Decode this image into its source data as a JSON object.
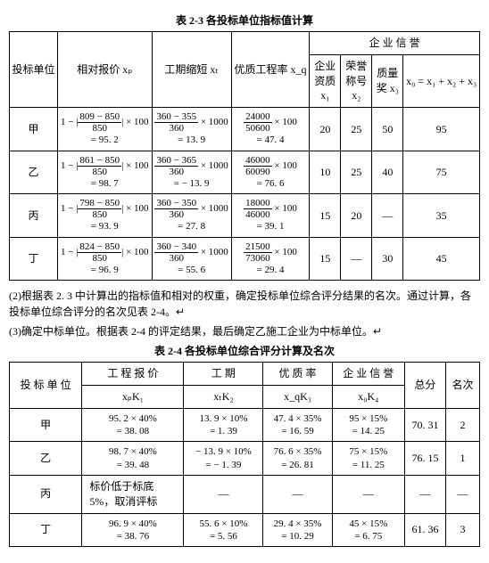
{
  "table23": {
    "caption": "表 2-3  各投标单位指标值计算",
    "headers": {
      "bidder": "投标单位",
      "relprice": "相对报价 xₚ",
      "duration": "工期缩短 xₜ",
      "quality": "优质工程率 x_q",
      "credit": "企 业 信 誉",
      "qual": "企业\n资质 x₁",
      "honor": "荣誉\n称号 x₂",
      "award": "质量\n奖 x₃",
      "sum": "x₀ = x₁ + x₂ + x₃"
    },
    "rows": [
      {
        "name": "甲",
        "relprice_num": "809 − 850",
        "relprice_den": "850",
        "relprice_expr_prefix": "1 −",
        "relprice_expr_suffix": "× 100",
        "relprice_result": "= 95. 2",
        "dur_num": "360 − 355",
        "dur_den": "360",
        "dur_suffix": "× 1000",
        "dur_result": "= 13. 9",
        "qual_num": "24000",
        "qual_den": "50600",
        "qual_suffix": "× 100",
        "qual_result": "= 47. 4",
        "c1": "20",
        "c2": "25",
        "c3": "50",
        "csum": "95"
      },
      {
        "name": "乙",
        "relprice_num": "861 − 850",
        "relprice_den": "850",
        "relprice_expr_prefix": "1 −",
        "relprice_expr_suffix": "× 100",
        "relprice_result": "= 98. 7",
        "dur_num": "360 − 365",
        "dur_den": "360",
        "dur_suffix": "× 1000",
        "dur_result": "= − 13. 9",
        "qual_num": "46000",
        "qual_den": "60090",
        "qual_suffix": "× 100",
        "qual_result": "= 76. 6",
        "c1": "10",
        "c2": "25",
        "c3": "40",
        "csum": "75"
      },
      {
        "name": "丙",
        "relprice_num": "798 − 850",
        "relprice_den": "850",
        "relprice_expr_prefix": "1 −",
        "relprice_expr_suffix": "× 100",
        "relprice_result": "= 93. 9",
        "dur_num": "360 − 350",
        "dur_den": "360",
        "dur_suffix": "× 1000",
        "dur_result": "= 27. 8",
        "qual_num": "18000",
        "qual_den": "46000",
        "qual_suffix": "× 100",
        "qual_result": "= 39. 1",
        "c1": "15",
        "c2": "20",
        "c3": "—",
        "csum": "35"
      },
      {
        "name": "丁",
        "relprice_num": "824 − 850",
        "relprice_den": "850",
        "relprice_expr_prefix": "1 −",
        "relprice_expr_suffix": "× 100",
        "relprice_result": "= 96. 9",
        "dur_num": "360 − 340",
        "dur_den": "360",
        "dur_suffix": "× 1000",
        "dur_result": "= 55. 6",
        "qual_num": "21500",
        "qual_den": "73060",
        "qual_suffix": "× 100",
        "qual_result": "= 29. 4",
        "c1": "15",
        "c2": "—",
        "c3": "30",
        "csum": "45"
      }
    ]
  },
  "para1": "(2)根据表 2. 3 中计算出的指标值和相对的权重，确定投标单位综合评分结果的名次。通过计算，各投标单位综合评分的名次见表 2-4。↵",
  "para2": "(3)确定中标单位。根据表 2-4 的评定结果，最后确定乙施工企业为中标单位。↵",
  "table24": {
    "caption": "表 2-4  各投标单位综合评分计算及名次",
    "headers": {
      "bidder": "投 标 单 位",
      "price": "工 程 报 价",
      "dur": "工  期",
      "qual": "优 质 率",
      "credit": "企 业 信 誉",
      "total": "总分",
      "rank": "名次",
      "r2price": "xₚK₁",
      "r2dur": "xₜK₂",
      "r2qual": "x_qK₃",
      "r2credit": "x₀K₄"
    },
    "rows": [
      {
        "name": "甲",
        "price_top": "95. 2 × 40%",
        "price_bot": "= 38. 08",
        "dur_top": "13. 9 × 10%",
        "dur_bot": "= 1. 39",
        "qual_top": "47. 4 × 35%",
        "qual_bot": "= 16. 59",
        "credit_top": "95 × 15%",
        "credit_bot": "= 14. 25",
        "total": "70. 31",
        "rank": "2"
      },
      {
        "name": "乙",
        "price_top": "98. 7 × 40%",
        "price_bot": "= 39. 48",
        "dur_top": "− 13. 9 × 10%",
        "dur_bot": "= − 1. 39",
        "qual_top": "76. 6 × 35%",
        "qual_bot": "= 26. 81",
        "credit_top": "75 × 15%",
        "credit_bot": "= 11. 25",
        "total": "76. 15",
        "rank": "1"
      },
      {
        "name": "丙",
        "note": "标价低于标底\n5%，取消评标",
        "dash": "—"
      },
      {
        "name": "丁",
        "price_top": "96. 9 × 40%",
        "price_bot": "= 38. 76",
        "dur_top": "55. 6 × 10%",
        "dur_bot": "= 5. 56",
        "qual_top": "29. 4 × 35%",
        "qual_bot": "= 10. 29",
        "credit_top": "45 × 15%",
        "credit_bot": "= 6. 75",
        "total": "61. 36",
        "rank": "3"
      }
    ]
  }
}
